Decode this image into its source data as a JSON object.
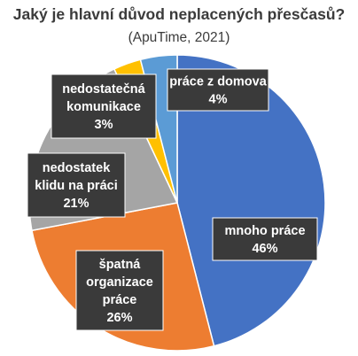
{
  "chart_data": {
    "type": "pie",
    "title": "Jaký je hlavní důvod neplacených přesčasů?",
    "subtitle": "(ApuTime, 2021)",
    "slices": [
      {
        "label": "mnoho práce",
        "value": 46,
        "display": "46%",
        "color": "#4472C4"
      },
      {
        "label": "špatná organizace práce",
        "value": 26,
        "display": "26%",
        "color": "#ED7D31"
      },
      {
        "label": "nedostatek klidu na práci",
        "value": 21,
        "display": "21%",
        "color": "#A5A5A5"
      },
      {
        "label": "nedostatečná komunikace",
        "value": 3,
        "display": "3%",
        "color": "#FFC000"
      },
      {
        "label": "práce z domova",
        "value": 4,
        "display": "4%",
        "color": "#5B9BD5"
      }
    ],
    "start_angle_deg": 0,
    "direction": "clockwise",
    "data_label_style": "dark box with white text"
  }
}
